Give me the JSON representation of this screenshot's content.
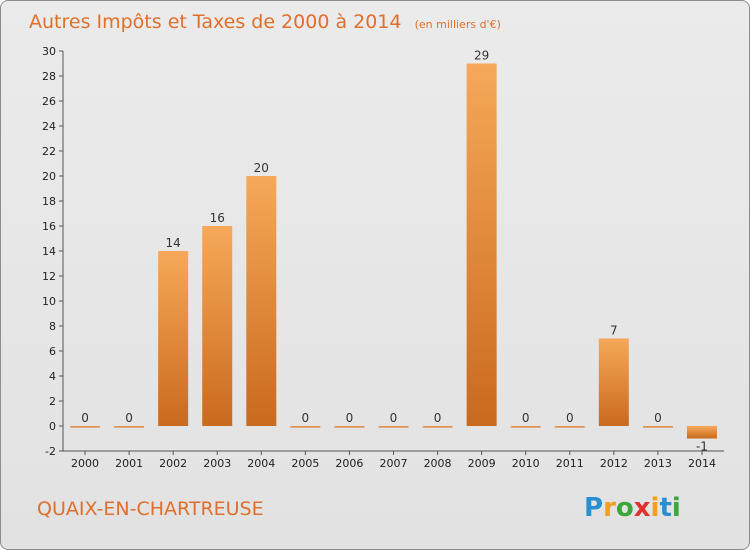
{
  "chart_data": {
    "type": "bar",
    "title": "Autres Impôts et Taxes de 2000 à 2014",
    "subtitle": "(en milliers d'€)",
    "categories": [
      "2000",
      "2001",
      "2002",
      "2003",
      "2004",
      "2005",
      "2006",
      "2007",
      "2008",
      "2009",
      "2010",
      "2011",
      "2012",
      "2013",
      "2014"
    ],
    "values": [
      0,
      0,
      14,
      16,
      20,
      0,
      0,
      0,
      0,
      29,
      0,
      0,
      7,
      0,
      -1
    ],
    "data_labels": [
      "0",
      "0",
      "14",
      "16",
      "20",
      "0",
      "0",
      "0",
      "0",
      "29",
      "0",
      "0",
      "7",
      "0",
      "-1"
    ],
    "yticks": [
      -2,
      0,
      2,
      4,
      6,
      8,
      10,
      12,
      14,
      16,
      18,
      20,
      22,
      24,
      26,
      28,
      30
    ],
    "ylim": [
      -2,
      30
    ],
    "grid": false,
    "colors": {
      "bar_light": "#f7a85a",
      "bar_dark": "#c96a1e",
      "title": "#e06f2b",
      "axis": "#555555"
    }
  },
  "commune_name": "QUAIX-EN-CHARTREUSE",
  "logo": {
    "letters": [
      "P",
      "r",
      "o",
      "x",
      "i",
      "t",
      "i"
    ],
    "colors": [
      "#2a8fd0",
      "#f0a020",
      "#3aa83a",
      "#e03030",
      "#f0a020",
      "#2a8fd0",
      "#3aa83a"
    ]
  }
}
